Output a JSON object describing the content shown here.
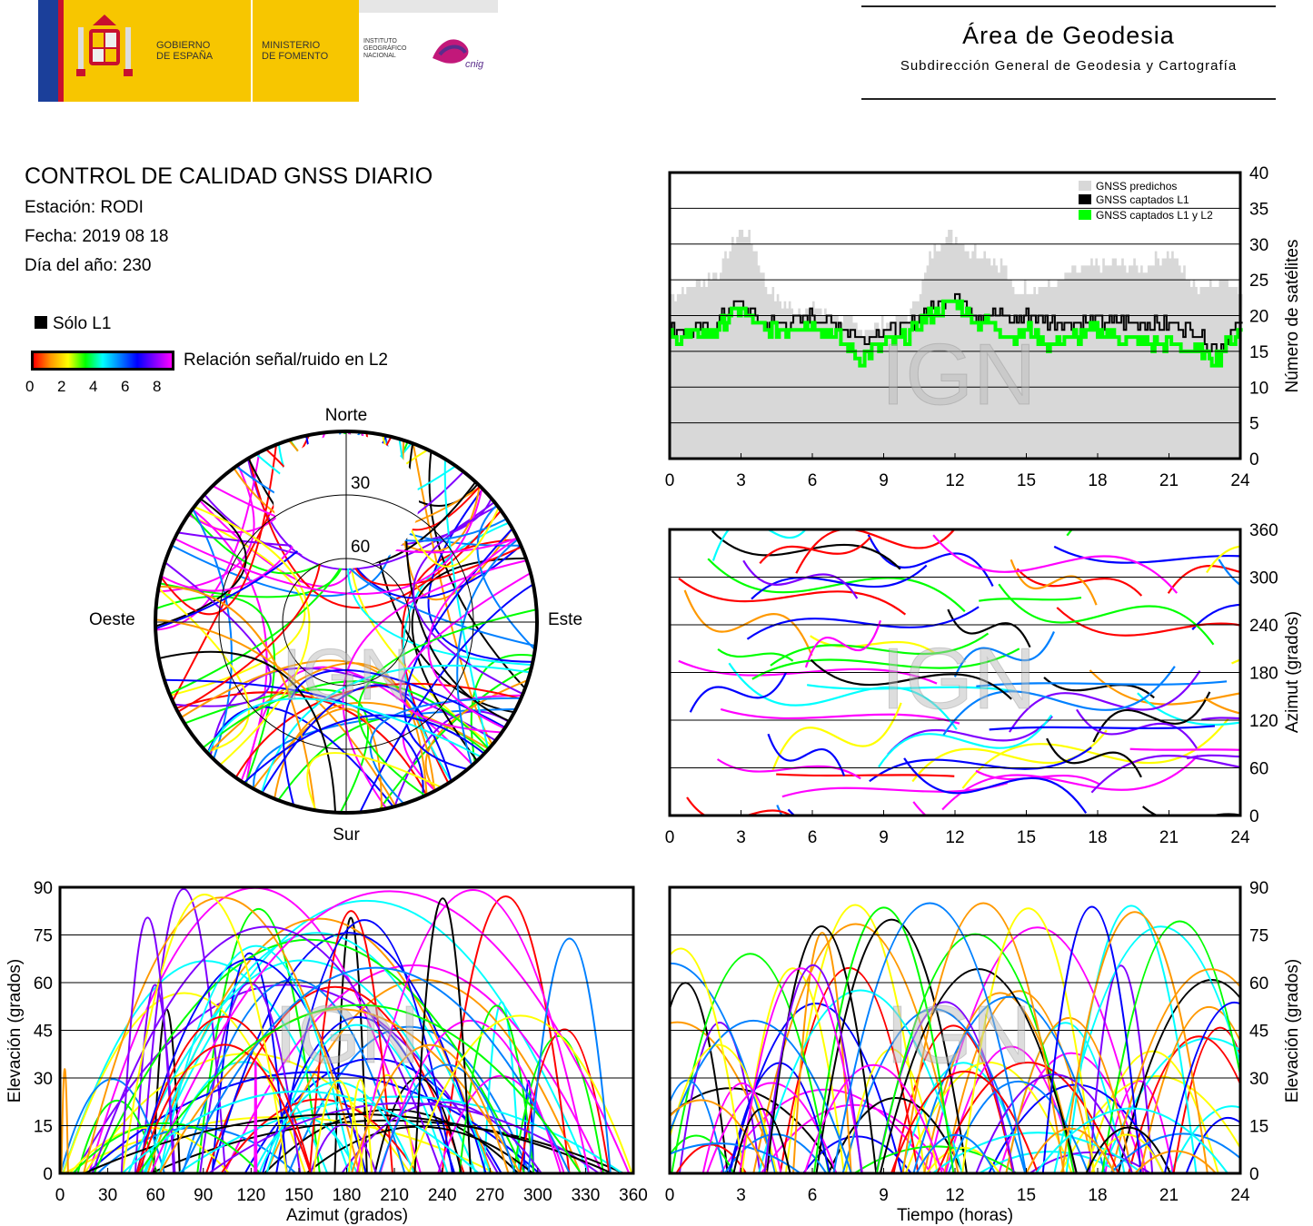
{
  "header": {
    "gobierno": "GOBIERNO\nDE ESPAÑA",
    "ministerio": "MINISTERIO\nDE FOMENTO",
    "instituto": "INSTITUTO\nGEOGRÁFICO\nNACIONAL",
    "cnig": "cnig",
    "area_title": "Área de Geodesia",
    "area_subtitle": "Subdirección General de Geodesia y Cartografía"
  },
  "report": {
    "title": "CONTROL DE CALIDAD GNSS DIARIO",
    "station": "Estación: RODI",
    "date": "Fecha: 2019 08 18",
    "doy": "Día del año: 230"
  },
  "legend": {
    "solo_l1": "Sólo L1",
    "snr_label": "Relación señal/ruido en L2",
    "snr_ticks": [
      "0",
      "2",
      "4",
      "6",
      "8"
    ],
    "snr_colors": [
      "#ff0000",
      "#ff9900",
      "#ffff00",
      "#00ff00",
      "#00ffff",
      "#0080ff",
      "#0000ff",
      "#8000ff",
      "#ff00ff"
    ]
  },
  "watermark": "IGN",
  "chart_data": [
    {
      "id": "satellites",
      "type": "area",
      "x_ticks": [
        "0",
        "3",
        "6",
        "9",
        "12",
        "15",
        "18",
        "21",
        "24"
      ],
      "y_ticks": [
        "0",
        "5",
        "10",
        "15",
        "20",
        "25",
        "30",
        "35",
        "40"
      ],
      "ylabel": "Número de satélites",
      "xlim": [
        0,
        24
      ],
      "ylim": [
        0,
        40
      ],
      "legend_position": "top-right",
      "series": [
        {
          "name": "GNSS predichos",
          "color": "#d8d8d8",
          "x": [
            0,
            1,
            2,
            2.5,
            3,
            3.5,
            4,
            5,
            6,
            7,
            8,
            9,
            10,
            10.5,
            11,
            11.5,
            12,
            12.5,
            13,
            14,
            14.5,
            15,
            16,
            17,
            18,
            19,
            20,
            21,
            22,
            23,
            24
          ],
          "values": [
            23,
            24,
            26,
            29,
            32,
            30,
            24,
            21,
            21,
            20,
            18,
            19,
            20,
            24,
            29,
            31,
            31,
            29,
            29,
            27,
            23,
            24,
            24,
            26,
            27,
            27,
            27,
            29,
            24,
            25,
            24
          ]
        },
        {
          "name": "GNSS captados L1",
          "color": "#000000",
          "x": [
            0,
            1,
            2,
            2.5,
            3,
            3.5,
            4,
            5,
            6,
            7,
            8,
            9,
            10,
            10.5,
            11,
            11.5,
            12,
            12.5,
            13,
            14,
            14.5,
            15,
            16,
            17,
            18,
            19,
            20,
            21,
            22,
            23,
            24
          ],
          "values": [
            18,
            18,
            19,
            21,
            22,
            20,
            19,
            19,
            20,
            19,
            17,
            18,
            18,
            20,
            21,
            22,
            23,
            21,
            20,
            20,
            19,
            20,
            19,
            19,
            19,
            19,
            19,
            19,
            18,
            15,
            19
          ]
        },
        {
          "name": "GNSS captados L1 y L2",
          "color": "#00ff00",
          "x": [
            0,
            1,
            2,
            2.5,
            3,
            3.5,
            4,
            5,
            6,
            7,
            8,
            9,
            10,
            10.5,
            11,
            11.5,
            12,
            12.5,
            13,
            14,
            14.5,
            15,
            16,
            17,
            18,
            19,
            20,
            21,
            22,
            23,
            24
          ],
          "values": [
            17,
            17,
            18,
            20,
            21,
            19,
            18,
            18,
            19,
            17,
            14,
            16,
            17,
            19,
            20,
            21,
            22,
            20,
            19,
            18,
            17,
            18,
            16,
            17,
            18,
            17,
            16,
            16,
            15,
            14,
            18
          ]
        }
      ]
    },
    {
      "id": "azimuth_time",
      "type": "scatter",
      "x_ticks": [
        "0",
        "3",
        "6",
        "9",
        "12",
        "15",
        "18",
        "21",
        "24"
      ],
      "y_ticks": [
        "0",
        "60",
        "120",
        "180",
        "240",
        "300",
        "360"
      ],
      "ylabel": "Azimut (grados)",
      "xlim": [
        0,
        24
      ],
      "ylim": [
        0,
        360
      ]
    },
    {
      "id": "polar",
      "type": "scatter",
      "labels": {
        "north": "Norte",
        "south": "Sur",
        "east": "Este",
        "west": "Oeste"
      },
      "rings": [
        "30",
        "60"
      ]
    },
    {
      "id": "elev_azimuth",
      "type": "scatter",
      "xlabel": "Azimut (grados)",
      "ylabel": "Elevación (grados)",
      "x_ticks": [
        "0",
        "30",
        "60",
        "90",
        "120",
        "150",
        "180",
        "210",
        "240",
        "270",
        "300",
        "330",
        "360"
      ],
      "y_ticks": [
        "0",
        "15",
        "30",
        "45",
        "60",
        "75",
        "90"
      ],
      "xlim": [
        0,
        360
      ],
      "ylim": [
        0,
        90
      ]
    },
    {
      "id": "elev_time",
      "type": "scatter",
      "xlabel": "Tiempo (horas)",
      "ylabel": "Elevación (grados)",
      "x_ticks": [
        "0",
        "3",
        "6",
        "9",
        "12",
        "15",
        "18",
        "21",
        "24"
      ],
      "y_ticks": [
        "0",
        "15",
        "30",
        "45",
        "60",
        "75",
        "90"
      ],
      "xlim": [
        0,
        24
      ],
      "ylim": [
        0,
        90
      ]
    }
  ]
}
